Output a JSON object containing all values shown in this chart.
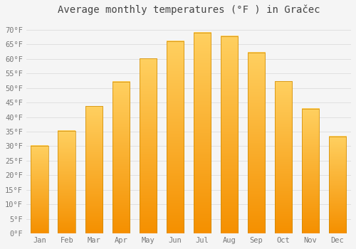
{
  "months": [
    "Jan",
    "Feb",
    "Mar",
    "Apr",
    "May",
    "Jun",
    "Jul",
    "Aug",
    "Sep",
    "Oct",
    "Nov",
    "Dec"
  ],
  "values": [
    30.2,
    35.2,
    43.7,
    52.2,
    60.1,
    66.0,
    69.1,
    67.8,
    62.1,
    52.3,
    42.8,
    33.3
  ],
  "bar_color": "#FFA500",
  "bar_edge_color": "#CC7700",
  "title": "Average monthly temperatures (°F ) in Gračec",
  "ylabel_ticks": [
    "0°F",
    "5°F",
    "10°F",
    "15°F",
    "20°F",
    "25°F",
    "30°F",
    "35°F",
    "40°F",
    "45°F",
    "50°F",
    "55°F",
    "60°F",
    "65°F",
    "70°F"
  ],
  "ytick_values": [
    0,
    5,
    10,
    15,
    20,
    25,
    30,
    35,
    40,
    45,
    50,
    55,
    60,
    65,
    70
  ],
  "ylim": [
    0,
    73
  ],
  "background_color": "#F5F5F5",
  "grid_color": "#DDDDDD",
  "title_fontsize": 10,
  "tick_fontsize": 7.5,
  "title_color": "#444444",
  "tick_color": "#777777"
}
